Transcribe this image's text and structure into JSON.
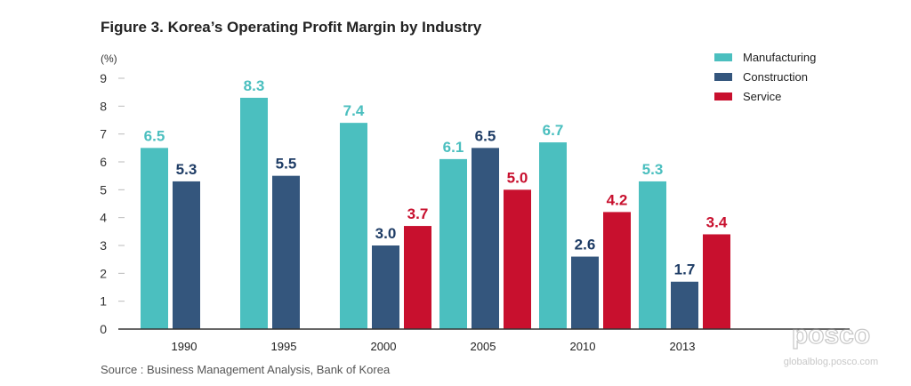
{
  "chart_data": {
    "type": "bar",
    "title": "Figure 3.  Korea’s Operating Profit Margin by Industry",
    "ylabel": "(%)",
    "xlabel": "",
    "ylim": [
      0,
      9
    ],
    "yticks": [
      "0",
      "1",
      "2",
      "3",
      "4",
      "5",
      "6",
      "7",
      "8",
      "9"
    ],
    "categories": [
      "1990",
      "1995",
      "2000",
      "2005",
      "2010",
      "2013"
    ],
    "series": [
      {
        "name": "Manufacturing",
        "color": "#4bbfbf",
        "label_color": "#4bbfbf",
        "values": [
          6.5,
          8.3,
          7.4,
          6.1,
          6.7,
          5.3
        ],
        "labels": [
          "6.5",
          "8.3",
          "7.4",
          "6.1",
          "6.7",
          "5.3"
        ]
      },
      {
        "name": "Construction",
        "color": "#34567d",
        "label_color": "#1f3d66",
        "values": [
          5.3,
          5.5,
          3.0,
          6.5,
          2.6,
          1.7
        ],
        "labels": [
          "5.3",
          "5.5",
          "3.0",
          "6.5",
          "2.6",
          "1.7"
        ]
      },
      {
        "name": "Service",
        "color": "#c8102e",
        "label_color": "#c8102e",
        "values": [
          null,
          null,
          3.7,
          5.0,
          4.2,
          3.4
        ],
        "labels": [
          null,
          null,
          "3.7",
          "5.0",
          "4.2",
          "3.4"
        ]
      }
    ],
    "legend_position": "top-right"
  },
  "source": "Source : Business Management Analysis, Bank of Korea",
  "watermark": {
    "brand": "posco",
    "url": "globalblog.posco.com"
  }
}
